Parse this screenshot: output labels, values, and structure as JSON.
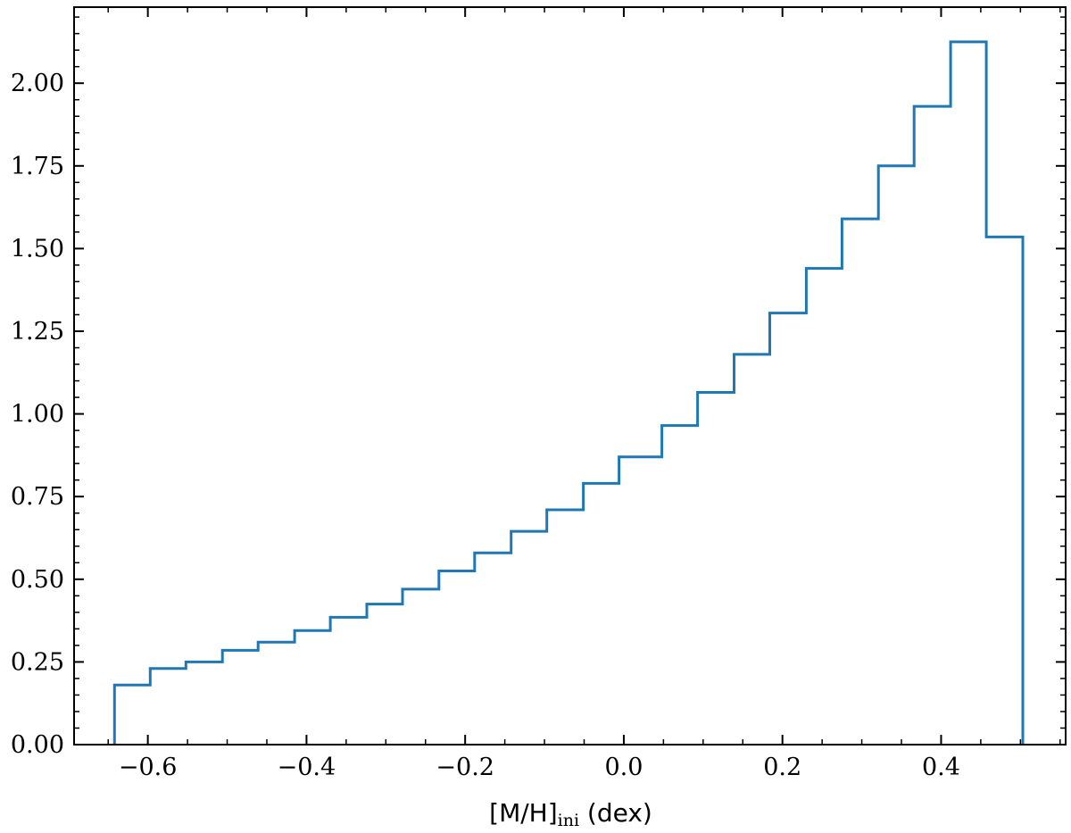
{
  "chart_data": {
    "type": "histogram-step",
    "title": "",
    "xlabel": {
      "main": "[M/H]",
      "subscript": "ini",
      "unit": " (dex)"
    },
    "ylabel": "",
    "xlim": [
      -0.693,
      0.557
    ],
    "ylim": [
      0,
      2.23
    ],
    "xticks": [
      -0.6,
      -0.4,
      -0.2,
      0.0,
      0.2,
      0.4
    ],
    "xtick_labels": [
      "−0.6",
      "−0.4",
      "−0.2",
      "0.0",
      "0.2",
      "0.4"
    ],
    "yticks": [
      0,
      0.25,
      0.5,
      0.75,
      1.0,
      1.25,
      1.5,
      1.75,
      2.0
    ],
    "ytick_labels": [
      "0.00",
      "0.25",
      "0.50",
      "0.75",
      "1.00",
      "1.25",
      "1.50",
      "1.75",
      "2.00"
    ],
    "x_minor_step": 0.05,
    "y_minor_step": 0.05,
    "tick_direction": "in",
    "grid": false,
    "series": [
      {
        "color": "#1f77b4",
        "bin_edges": [
          -0.642,
          -0.597,
          -0.552,
          -0.506,
          -0.461,
          -0.415,
          -0.37,
          -0.324,
          -0.279,
          -0.233,
          -0.188,
          -0.142,
          -0.097,
          -0.051,
          -0.006,
          0.048,
          0.093,
          0.139,
          0.184,
          0.23,
          0.275,
          0.321,
          0.366,
          0.412,
          0.457,
          0.503
        ],
        "values": [
          0.18,
          0.23,
          0.25,
          0.285,
          0.31,
          0.345,
          0.385,
          0.425,
          0.47,
          0.525,
          0.58,
          0.645,
          0.71,
          0.79,
          0.87,
          0.965,
          1.065,
          1.18,
          1.305,
          1.44,
          1.59,
          1.75,
          1.93,
          2.125,
          1.535
        ]
      }
    ]
  }
}
